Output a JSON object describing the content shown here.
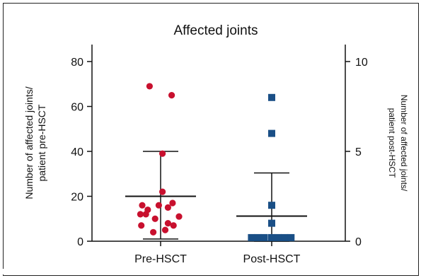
{
  "chart_data": {
    "type": "scatter",
    "title": "Affected joints",
    "categories": [
      "Pre-HSCT",
      "Post-HSCT"
    ],
    "ylabel_left": [
      "Number of affected joints/",
      "patient pre-HSCT"
    ],
    "ylabel_right": [
      "Number of affected joints/",
      "patient post-HSCT"
    ],
    "ylim_left": [
      0,
      80
    ],
    "ylim_right": [
      0,
      10
    ],
    "yticks_left": [
      "0",
      "20",
      "40",
      "60",
      "80"
    ],
    "yticks_right": [
      "0",
      "5",
      "10"
    ],
    "series": [
      {
        "name": "Pre-HSCT",
        "axis": "left",
        "marker": "circle",
        "color": "#c8102e",
        "points": [
          {
            "x": -0.12,
            "y": 69
          },
          {
            "x": 0.12,
            "y": 65
          },
          {
            "x": 0.02,
            "y": 39
          },
          {
            "x": 0.02,
            "y": 22
          },
          {
            "x": -0.2,
            "y": 16
          },
          {
            "x": -0.02,
            "y": 16
          },
          {
            "x": 0.13,
            "y": 17
          },
          {
            "x": -0.14,
            "y": 14
          },
          {
            "x": 0.08,
            "y": 15
          },
          {
            "x": -0.22,
            "y": 12
          },
          {
            "x": -0.16,
            "y": 12
          },
          {
            "x": -0.06,
            "y": 10
          },
          {
            "x": 0.2,
            "y": 11
          },
          {
            "x": 0.08,
            "y": 8
          },
          {
            "x": 0.14,
            "y": 7
          },
          {
            "x": -0.21,
            "y": 7
          },
          {
            "x": -0.08,
            "y": 4
          },
          {
            "x": 0.05,
            "y": 5
          }
        ],
        "mean": 20,
        "sd_upper": 40,
        "sd_lower": 1
      },
      {
        "name": "Post-HSCT",
        "axis": "right",
        "marker": "square",
        "color": "#1a4f86",
        "points": [
          {
            "x": 0.0,
            "y": 8
          },
          {
            "x": 0.0,
            "y": 6
          },
          {
            "x": 0.0,
            "y": 2
          },
          {
            "x": 0.0,
            "y": 1
          },
          {
            "x": -0.22,
            "y": 0.2
          },
          {
            "x": -0.15,
            "y": 0.2
          },
          {
            "x": -0.08,
            "y": 0.2
          },
          {
            "x": 0.0,
            "y": 0.2
          },
          {
            "x": 0.07,
            "y": 0.2
          },
          {
            "x": 0.14,
            "y": 0.2
          },
          {
            "x": 0.21,
            "y": 0.2
          }
        ],
        "mean": 1.4,
        "sd_upper": 3.8,
        "sd_lower": 0
      }
    ]
  }
}
